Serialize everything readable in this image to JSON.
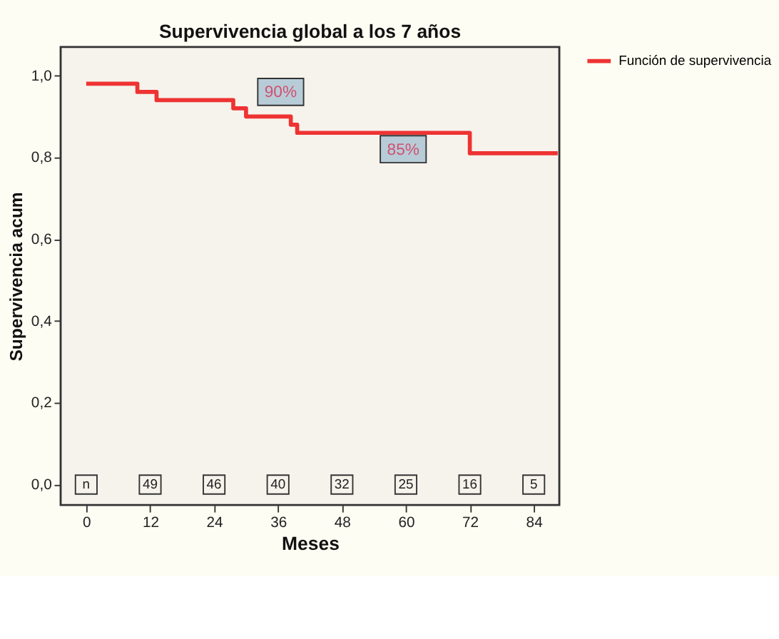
{
  "chart_data": {
    "type": "step",
    "title": "Supervivencia global a los 7 años",
    "xlabel": "Meses",
    "ylabel": "Supervivencia acum",
    "x": [
      0,
      9.6,
      13.2,
      27.6,
      30,
      38.4,
      39.6,
      72,
      88.5
    ],
    "series": [
      {
        "name": "Función de supervivencia",
        "color": "#ee3333",
        "values": [
          0.98,
          0.96,
          0.94,
          0.92,
          0.9,
          0.88,
          0.86,
          0.81,
          0.81
        ]
      }
    ],
    "xlim": [
      -4.8,
      88.8
    ],
    "xticks": [
      0,
      12,
      24,
      36,
      48,
      60,
      72,
      84
    ],
    "ylim": [
      -0.05,
      1.07
    ],
    "yticks": [
      {
        "value": 0,
        "label": "0,0"
      },
      {
        "value": 0.2,
        "label": "0,2"
      },
      {
        "value": 0.4,
        "label": "0,4"
      },
      {
        "value": 0.6,
        "label": "0,6"
      },
      {
        "value": 0.8,
        "label": "0,8"
      },
      {
        "value": 1,
        "label": "1,0"
      }
    ],
    "annotations": [
      {
        "text": "90%",
        "x": 36.5,
        "y": 0.96
      },
      {
        "text": "85%",
        "x": 59.5,
        "y": 0.82
      },
      {
        "text": "n",
        "x": 0,
        "y": 0
      },
      {
        "text": "49",
        "x": 12,
        "y": 0
      },
      {
        "text": "46",
        "x": 24,
        "y": 0
      },
      {
        "text": "40",
        "x": 36,
        "y": 0
      },
      {
        "text": "32",
        "x": 48,
        "y": 0
      },
      {
        "text": "25",
        "x": 60,
        "y": 0
      },
      {
        "text": "16",
        "x": 72,
        "y": 0
      },
      {
        "text": "5",
        "x": 84,
        "y": 0
      }
    ],
    "legend": "right",
    "grid": false,
    "line_style": "solid",
    "marker": "none"
  }
}
